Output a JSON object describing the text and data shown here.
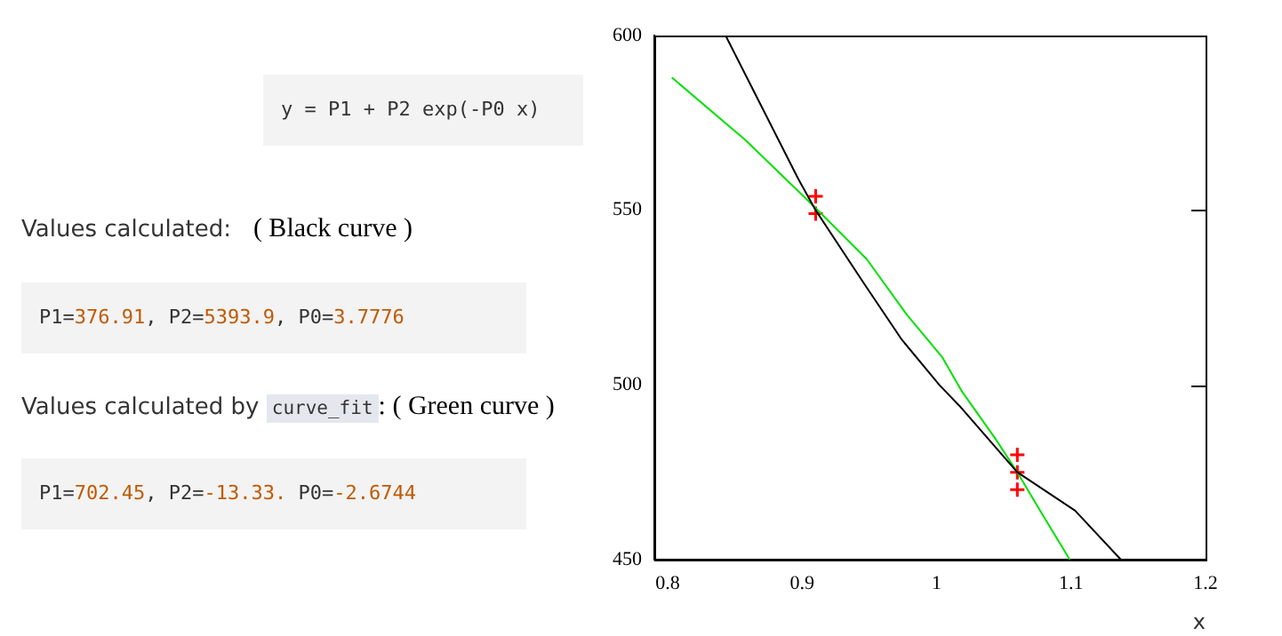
{
  "chart_data": {
    "type": "line",
    "xlabel": "x",
    "annotations": [
      "y = P1 + P2 exp(-P0 x)",
      "Values calculated:",
      "( Black curve )",
      "P1=376.91, P2=5393.9, P0=3.7776",
      "Values calculated by",
      "curve_fit",
      ": ( Green curve )",
      "P1=702.45, P2=-13.33. P0=-2.6744"
    ],
    "xlim": [
      0.79,
      1.2
    ],
    "xticks": [
      0.8,
      0.9,
      1,
      1.1,
      1.2
    ],
    "ylim": [
      450,
      600
    ],
    "yticks": [
      450,
      500,
      550,
      600
    ],
    "grid": false,
    "series": [
      {
        "color": "#000000",
        "marker": "none",
        "x": [
          0.843,
          0.897,
          0.91,
          0.946,
          0.974,
          1.002,
          1.017,
          1.06,
          1.103,
          1.137
        ],
        "values": [
          600,
          559,
          550,
          529,
          513,
          500,
          494,
          475,
          464,
          450
        ]
      },
      {
        "color": "#00e000",
        "marker": "none",
        "x": [
          0.803,
          0.858,
          0.909,
          0.948,
          0.978,
          1.004,
          1.019,
          1.043,
          1.06,
          1.077,
          1.099
        ],
        "values": [
          588,
          570,
          551,
          536,
          520,
          508,
          498,
          485,
          475,
          464,
          450
        ]
      },
      {
        "type": "scatter",
        "color": "#ff0000",
        "marker": "cross",
        "x": [
          0.91,
          0.91,
          1.06,
          1.06,
          1.06
        ],
        "values": [
          554,
          549,
          480,
          475,
          470
        ]
      }
    ]
  }
}
